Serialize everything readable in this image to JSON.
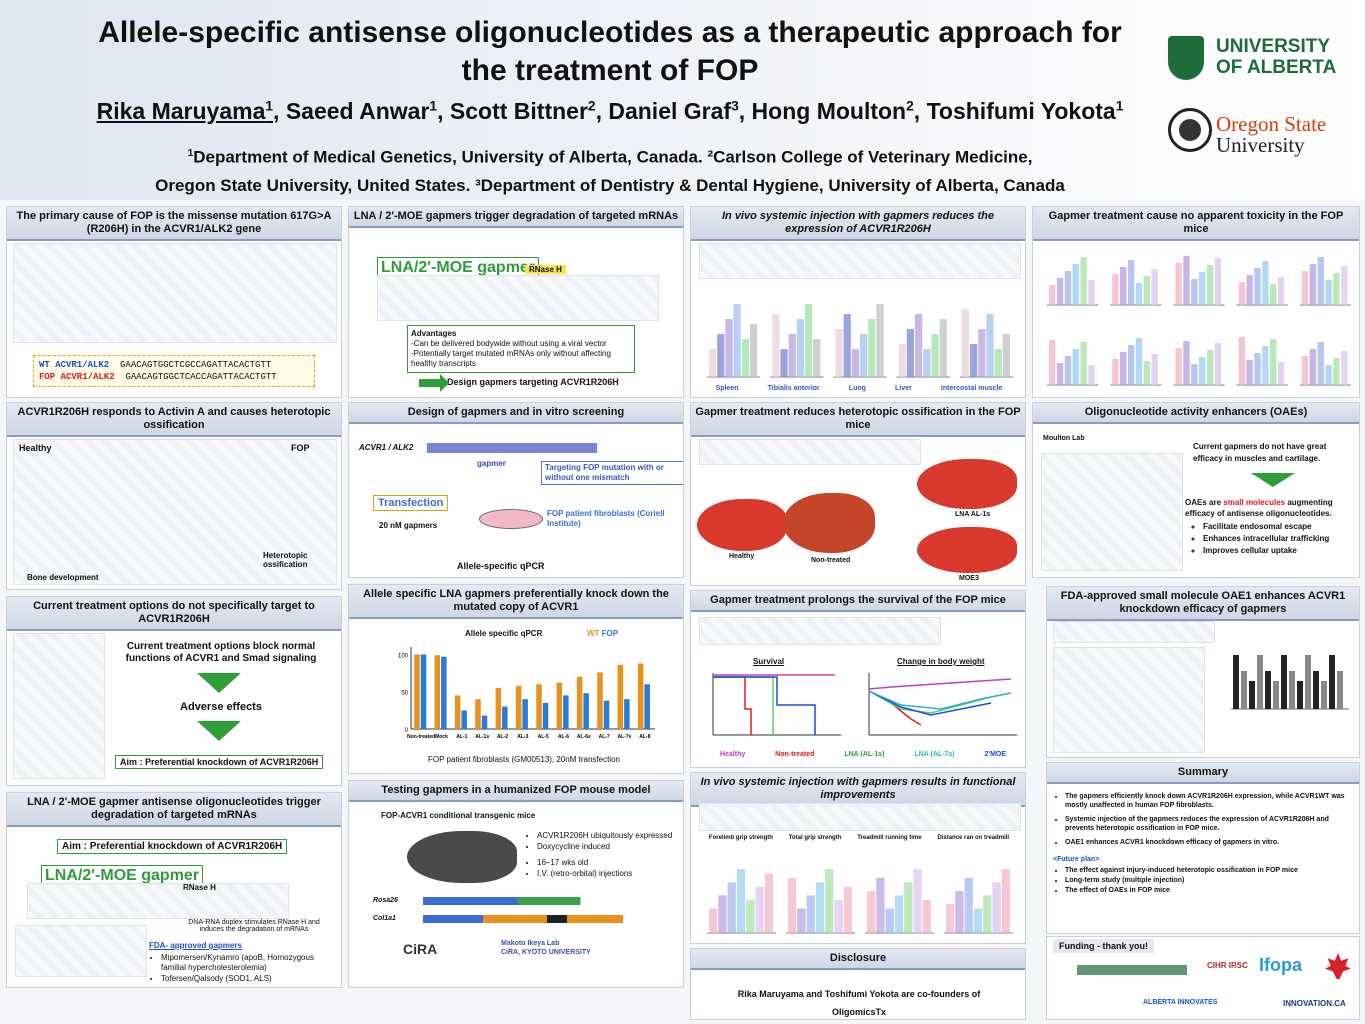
{
  "title_line1": "Allele-specific antisense oligonucleotides as a therapeutic approach for",
  "title_line2": "the treatment of FOP",
  "authors": {
    "a1": "Rika Maruyama",
    "a2": "Saeed Anwar",
    "a3": "Scott Bittner",
    "a4": "Daniel Graf",
    "a5": "Hong Moulton",
    "a6": "Toshifumi Yokota",
    "sup1": "1",
    "sup2": "2",
    "sup3": "3"
  },
  "affil_line1": "Department of Medical Genetics, University of Alberta, Canada.  ²Carlson College of Veterinary Medicine,",
  "affil_line2": "Oregon State University, United States.  ³Department of Dentistry & Dental Hygiene, University of Alberta, Canada",
  "logos": {
    "ua_1": "UNIVERSITY",
    "ua_2": "OF ALBERTA",
    "osu_1": "Oregon State",
    "osu_2": "University"
  },
  "col1": {
    "p1_title": "The primary cause of FOP is the missense mutation 617G>A (R206H) in the ACVR1/ALK2 gene",
    "wt_label": "WT ACVR1/ALK2",
    "wt_seq": "GAACAGTGGCTCGCCAGATTACACTGTT",
    "fop_label": "FOP ACVR1/ALK2",
    "fop_seq": "GAACAGTGGCTCACCAGATTACACTGTT",
    "p2_title": "ACVR1R206H responds to Activin A and causes heterotopic ossification",
    "healthy": "Healthy",
    "fop": "FOP",
    "bone_dev": "Bone development",
    "het_oss": "Heterotopic ossification",
    "p3_title": "Current treatment options do not specifically target to ACVR1R206H",
    "p3_text": "Current treatment options block normal functions of ACVR1 and Smad signaling",
    "adverse": "Adverse effects",
    "aim": "Aim : Preferential knockdown of ACVR1R206H",
    "p4_title": "LNA / 2'-MOE gapmer antisense oligonucleotides trigger degradation of targeted mRNAs",
    "p4_aim": "Aim : Preferential knockdown of ACVR1R206H",
    "gapmer_tag": "LNA/2'-MOE gapmer",
    "rnase": "RNase H",
    "dna_rna": "DNA-RNA duplex stimulates RNase H and induces the degradation of mRNAs",
    "fda_title": "FDA- approved gapmers",
    "fda_1": "Mipomersen/Kynamro (apoB, Homozygous familial hypercholesterolemia)",
    "fda_2": "Tofersen/Qalsody (SOD1, ALS)"
  },
  "col2": {
    "p1_title": "LNA / 2'-MOE gapmers trigger degradation of targeted mRNAs",
    "gapmer_tag": "LNA/2'-MOE gapmer",
    "rnase": "RNase H",
    "adv_title": "Advantages",
    "adv_1": "-Can be delivered bodywide without using a viral vector",
    "adv_2": "-Potentially target mutated mRNAs only without affecting healthy transcripts",
    "design": "Design gapmers targeting ACVR1R206H",
    "p2_title": "Design of gapmers and in vitro screening",
    "acvr1": "ACVR1 / ALK2",
    "gapmer": "gapmer",
    "targeting": "Targeting FOP mutation with or without one mismatch",
    "transfection": "Transfection",
    "conc": "20 nM gapmers",
    "cells": "FOP patient fibroblasts (Coriell Institute)",
    "qpcr": "Allele-specific qPCR",
    "p3_title": "Allele specific LNA gapmers preferentially knock down the mutated copy of ACVR1",
    "chart_title": "Allele specific qPCR",
    "legend_wt": "WT",
    "legend_fop": "FOP",
    "chart_caption": "FOP patient fibroblasts (GM00513), 20nM transfection",
    "p4_title": "Testing gapmers in a humanized FOP mouse model",
    "model": "FOP-ACVR1 conditional transgenic mice",
    "m1": "ACVR1R206H ubiquitously expressed",
    "m2": "Doxycycline induced",
    "m3": "16–17 wks old",
    "m4": "I.V. (retro-orbital) injections",
    "rosa": "Rosa26",
    "col1a1": "Col1a1",
    "lab": "Makoto Ikeya Lab",
    "lab2": "CiRA, KYOTO UNIVERSITY",
    "cira": "CiRA"
  },
  "col3": {
    "p1_title": "In vivo systemic injection with gapmers reduces the expression of ACVR1R206H",
    "tissues": [
      "Spleen",
      "Tibialis anterior",
      "Lung",
      "Liver",
      "Intercostal muscle"
    ],
    "p2_title": "Gapmer treatment reduces heterotopic ossification in the FOP mice",
    "healthy": "Healthy",
    "nontreated": "Non-treated",
    "lna": "LNA AL-1s",
    "moe": "MOE3",
    "p3_title": "Gapmer treatment prolongs the survival of the FOP mice",
    "survival": "Survival",
    "bodyweight": "Change in body weight",
    "leg": [
      "Healthy",
      "Non-treated",
      "LNA (AL-1s)",
      "LNA (AL-7s)",
      "2'MOE"
    ],
    "p4_title": "In vivo systemic injection with gapmers results in functional improvements",
    "f_labels": [
      "Forelimb grip strength",
      "Total grip strength",
      "Treadmill running time",
      "Distance ran on treadmill"
    ],
    "p5_title": "Disclosure",
    "disclosure": "Rika Maruyama and Toshifumi Yokota are co-founders of OligomicsTx"
  },
  "col4": {
    "p1_title": "Gapmer treatment cause no apparent toxicity in the FOP mice",
    "p2_title": "Oligonucleotide activity enhancers (OAEs)",
    "moulton": "Moulton Lab",
    "oae_1": "Current gapmers do not have great efficacy in muscles and cartilage.",
    "oae_2a": "OAEs are",
    "oae_2b": "small molecules",
    "oae_2c": "augmenting efficacy of antisense oligonucleotides.",
    "oae_b1": "Facilitate endosomal escape",
    "oae_b2": "Enhances intracellular trafficking",
    "oae_b3": "Improves cellular uptake",
    "p3_title": "FDA-approved small molecule OAE1 enhances ACVR1 knockdown efficacy of gapmers",
    "p4_title": "Summary",
    "s1": "The gapmers efficiently knock down ACVR1R206H expression, while ACVR1WT was mostly unaffected in human FOP fibroblasts.",
    "s2": "Systemic injection of the gapmers reduces the expression of ACVR1R206H and prevents heterotopic ossification in FOP mice.",
    "s3": "OAE1 enhances ACVR1 knockdown efficacy of gapmers in vitro.",
    "future": "<Future plan>",
    "f1": "The effect against injury-induced heterotopic ossification in FOP mice",
    "f2": "Long-term study (multiple injection)",
    "f3": "The effect of OAEs in FOP mice",
    "funding": "Funding - thank you!",
    "fund_logos": [
      "CIHR IRSC",
      "Ifopa",
      "ALBERTA INNOVATES",
      "INNOVATION.CA"
    ]
  },
  "chart_data": {
    "type": "bar",
    "title": "Allele specific qPCR",
    "categories": [
      "Non-treated",
      "Mock",
      "AL-1",
      "AL-1s",
      "AL-2",
      "AL-3",
      "AL-5",
      "AL-6",
      "AL-6s",
      "AL-7",
      "AL-7s",
      "AL-8"
    ],
    "series": [
      {
        "name": "WT",
        "values": [
          100,
          99,
          45,
          40,
          55,
          58,
          60,
          62,
          70,
          76,
          86,
          88
        ]
      },
      {
        "name": "FOP",
        "values": [
          100,
          97,
          25,
          18,
          30,
          40,
          35,
          45,
          48,
          38,
          40,
          60
        ]
      }
    ],
    "ylim": [
      0,
      110
    ],
    "colors": {
      "WT": "#e8911c",
      "FOP": "#2a7bd8"
    }
  }
}
